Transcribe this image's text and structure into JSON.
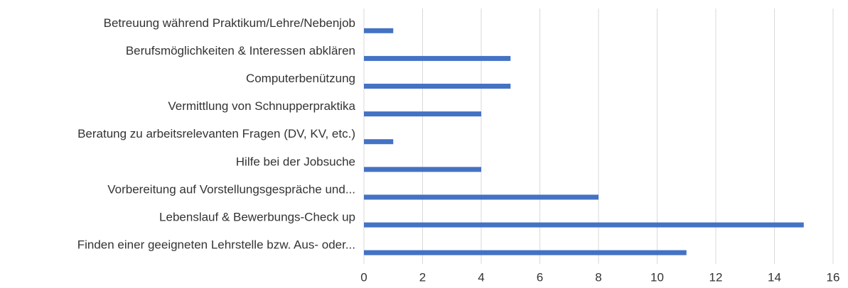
{
  "chart_data": {
    "type": "bar",
    "orientation": "horizontal",
    "categories": [
      "Betreuung während Praktikum/Lehre/Nebenjob",
      "Berufsmöglichkeiten & Interessen abklären",
      "Computerbenützung",
      "Vermittlung von Schnupperpraktika",
      "Beratung zu arbeitsrelevanten Fragen (DV, KV, etc.)",
      "Hilfe bei der Jobsuche",
      "Vorbereitung auf Vorstellungsgespräche und...",
      "Lebenslauf & Bewerbungs-Check up",
      "Finden einer geeigneten Lehrstelle bzw. Aus- oder..."
    ],
    "values": [
      1,
      5,
      5,
      4,
      1,
      4,
      8,
      15,
      11
    ],
    "color": "#4472c4",
    "xlim": [
      0,
      16
    ],
    "xticks": [
      0,
      2,
      4,
      6,
      8,
      10,
      12,
      14,
      16
    ],
    "grid": true
  }
}
